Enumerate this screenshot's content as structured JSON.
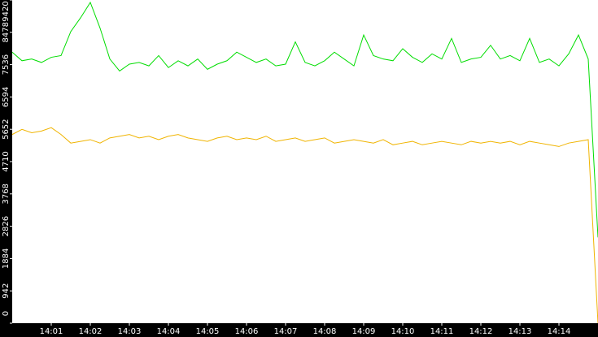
{
  "chart_data": {
    "type": "line",
    "x": [
      0,
      0.25,
      0.5,
      0.75,
      1,
      1.25,
      1.5,
      1.75,
      2,
      2.25,
      2.5,
      2.75,
      3,
      3.25,
      3.5,
      3.75,
      4,
      4.25,
      4.5,
      4.75,
      5,
      5.25,
      5.5,
      5.75,
      6,
      6.25,
      6.5,
      6.75,
      7,
      7.25,
      7.5,
      7.75,
      8,
      8.25,
      8.5,
      8.75,
      9,
      9.25,
      9.5,
      9.75,
      10,
      10.25,
      10.5,
      10.75,
      11,
      11.25,
      11.5,
      11.75,
      12,
      12.25,
      12.5,
      12.75,
      13,
      13.25,
      13.5,
      13.75,
      14,
      14.25,
      14.5,
      14.75,
      15
    ],
    "series": [
      {
        "color": "#00dd00",
        "values": [
          7900,
          7650,
          7700,
          7600,
          7750,
          7800,
          8500,
          8900,
          9350,
          8600,
          7700,
          7350,
          7550,
          7600,
          7500,
          7800,
          7450,
          7650,
          7500,
          7700,
          7400,
          7550,
          7650,
          7900,
          7750,
          7600,
          7700,
          7500,
          7550,
          8200,
          7600,
          7500,
          7650,
          7900,
          7700,
          7500,
          8400,
          7800,
          7700,
          7650,
          8000,
          7750,
          7600,
          7850,
          7700,
          8300,
          7600,
          7700,
          7750,
          8100,
          7700,
          7800,
          7650,
          8300,
          7600,
          7700,
          7500,
          7850,
          8400,
          7700,
          2500
        ]
      },
      {
        "color": "#f0b400",
        "values": [
          5500,
          5650,
          5550,
          5600,
          5700,
          5500,
          5250,
          5300,
          5350,
          5250,
          5400,
          5450,
          5500,
          5400,
          5450,
          5350,
          5450,
          5500,
          5400,
          5350,
          5300,
          5400,
          5450,
          5350,
          5400,
          5350,
          5450,
          5300,
          5350,
          5400,
          5300,
          5350,
          5400,
          5250,
          5300,
          5350,
          5300,
          5250,
          5350,
          5200,
          5250,
          5300,
          5200,
          5250,
          5300,
          5250,
          5200,
          5300,
          5250,
          5300,
          5250,
          5300,
          5200,
          5300,
          5250,
          5200,
          5150,
          5250,
          5300,
          5350,
          0
        ]
      }
    ],
    "xlim": [
      0,
      15
    ],
    "xticks": [
      {
        "value": 1,
        "label": "14:01"
      },
      {
        "value": 2,
        "label": "14:02"
      },
      {
        "value": 3,
        "label": "14:03"
      },
      {
        "value": 4,
        "label": "14:04"
      },
      {
        "value": 5,
        "label": "14:05"
      },
      {
        "value": 6,
        "label": "14:06"
      },
      {
        "value": 7,
        "label": "14:07"
      },
      {
        "value": 8,
        "label": "14:08"
      },
      {
        "value": 9,
        "label": "14:09"
      },
      {
        "value": 10,
        "label": "14:10"
      },
      {
        "value": 11,
        "label": "14:11"
      },
      {
        "value": 12,
        "label": "14:12"
      },
      {
        "value": 13,
        "label": "14:13"
      },
      {
        "value": 14,
        "label": "14:14"
      }
    ],
    "ylim": [
      0,
      9420
    ],
    "yticks": [
      0,
      942,
      1884,
      2826,
      3768,
      4710,
      5652,
      6594,
      7536,
      8478,
      9420
    ]
  }
}
